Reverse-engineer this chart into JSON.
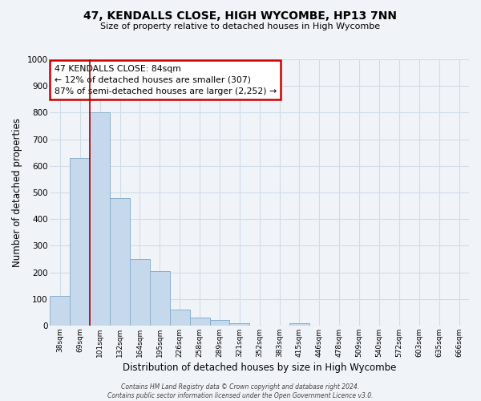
{
  "title": "47, KENDALLS CLOSE, HIGH WYCOMBE, HP13 7NN",
  "subtitle": "Size of property relative to detached houses in High Wycombe",
  "xlabel": "Distribution of detached houses by size in High Wycombe",
  "ylabel": "Number of detached properties",
  "bin_labels": [
    "38sqm",
    "69sqm",
    "101sqm",
    "132sqm",
    "164sqm",
    "195sqm",
    "226sqm",
    "258sqm",
    "289sqm",
    "321sqm",
    "352sqm",
    "383sqm",
    "415sqm",
    "446sqm",
    "478sqm",
    "509sqm",
    "540sqm",
    "572sqm",
    "603sqm",
    "635sqm",
    "666sqm"
  ],
  "bar_values": [
    110,
    630,
    800,
    480,
    250,
    205,
    60,
    30,
    20,
    10,
    0,
    0,
    10,
    0,
    0,
    0,
    0,
    0,
    0,
    0,
    0
  ],
  "bar_color": "#c6d9ec",
  "bar_edge_color": "#8ab0cc",
  "vline_x_idx": 1.5,
  "vline_color": "#aa0000",
  "annotation_line1": "47 KENDALLS CLOSE: 84sqm",
  "annotation_line2": "← 12% of detached houses are smaller (307)",
  "annotation_line3": "87% of semi-detached houses are larger (2,252) →",
  "annotation_box_color": "#cc0000",
  "ylim": [
    0,
    1000
  ],
  "yticks": [
    0,
    100,
    200,
    300,
    400,
    500,
    600,
    700,
    800,
    900,
    1000
  ],
  "grid_color": "#d0dce8",
  "footer_line1": "Contains HM Land Registry data © Crown copyright and database right 2024.",
  "footer_line2": "Contains public sector information licensed under the Open Government Licence v3.0.",
  "bg_color": "#f0f4f8"
}
